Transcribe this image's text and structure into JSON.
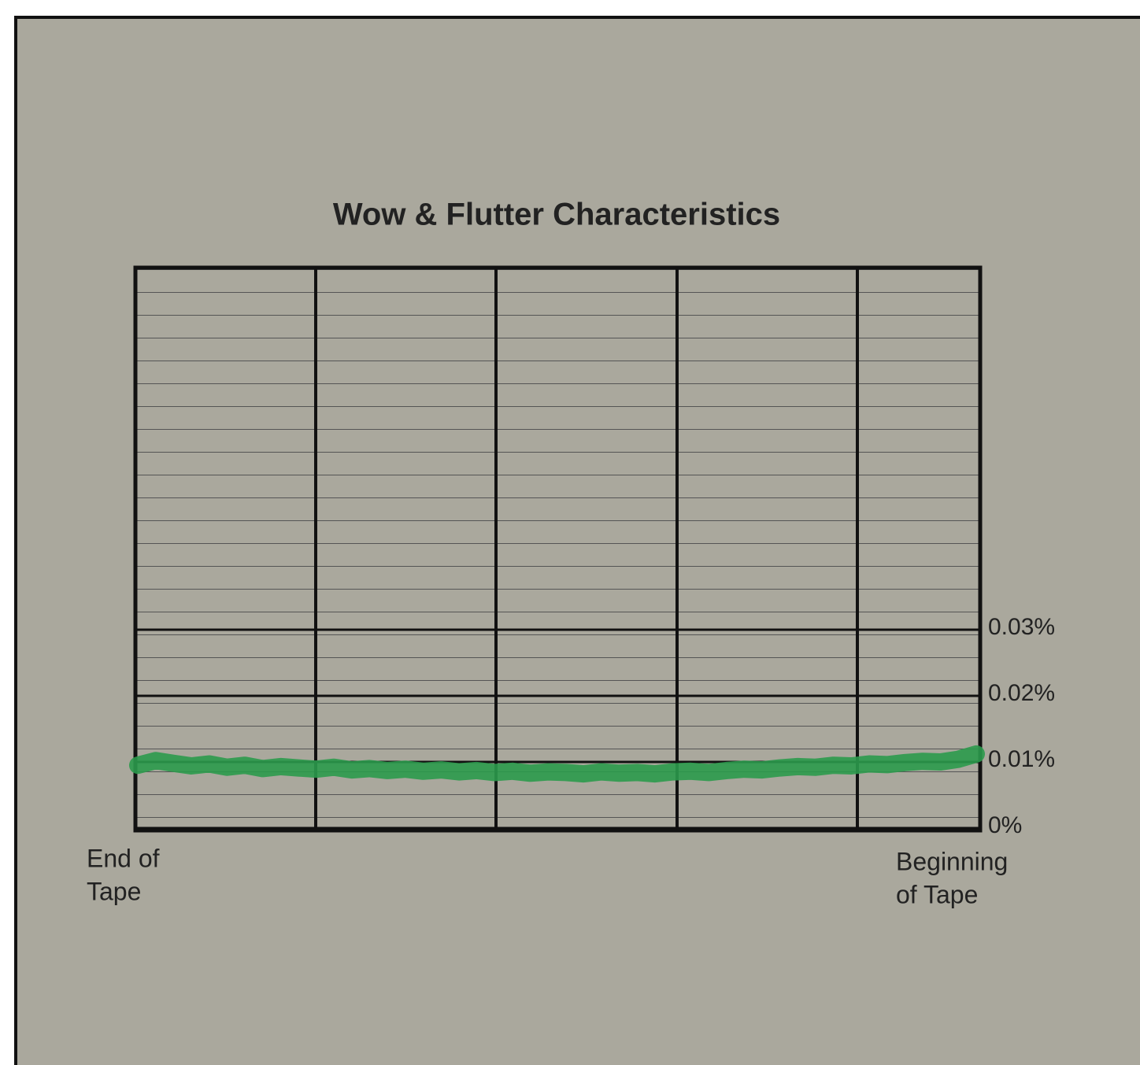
{
  "chart_data": {
    "type": "line",
    "title": "Wow & Flutter Characteristics",
    "series": [
      {
        "color": "#2b9a4c",
        "values": [
          0.0095,
          0.0102,
          0.0098,
          0.0094,
          0.0097,
          0.0092,
          0.0095,
          0.009,
          0.0093,
          0.0091,
          0.0089,
          0.0092,
          0.0088,
          0.009,
          0.0087,
          0.0089,
          0.0086,
          0.0088,
          0.0085,
          0.0087,
          0.0084,
          0.0086,
          0.0083,
          0.0085,
          0.0084,
          0.0082,
          0.0085,
          0.0083,
          0.0084,
          0.0082,
          0.0085,
          0.0086,
          0.0084,
          0.0087,
          0.0089,
          0.0088,
          0.0091,
          0.0093,
          0.0092,
          0.0095,
          0.0094,
          0.0097,
          0.0096,
          0.0099,
          0.0101,
          0.01,
          0.0104,
          0.0112
        ]
      }
    ],
    "ylim": [
      0,
      0.085
    ],
    "yticks": [
      {
        "value": 0,
        "label": "0%"
      },
      {
        "value": 0.01,
        "label": "0.01%"
      },
      {
        "value": 0.02,
        "label": "0.02%"
      },
      {
        "value": 0.03,
        "label": "0.03%"
      }
    ],
    "x_start_label": [
      "End of",
      "Tape"
    ],
    "x_end_label": [
      "Beginning",
      "of Tape"
    ],
    "grid": true
  }
}
